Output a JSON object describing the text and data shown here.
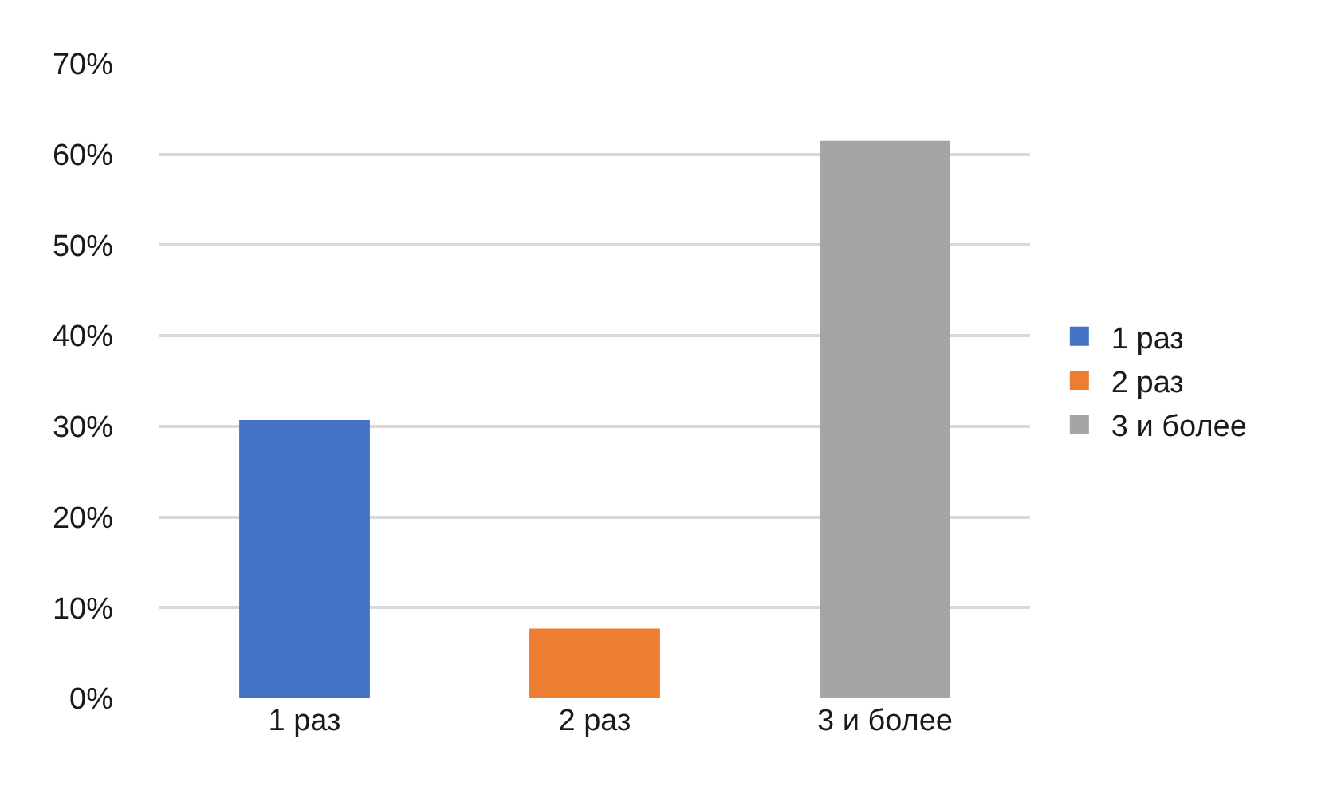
{
  "chart_data": {
    "type": "bar",
    "categories": [
      "1 раз",
      "2 раз",
      "3 и более"
    ],
    "series": [
      {
        "name": "1 раз",
        "color": "#4472c4",
        "values": [
          30.7,
          null,
          null
        ]
      },
      {
        "name": "2 раз",
        "color": "#ed7d31",
        "values": [
          null,
          7.7,
          null
        ]
      },
      {
        "name": "3 и более",
        "color": "#a5a5a5",
        "values": [
          null,
          null,
          61.5
        ]
      }
    ],
    "ylim": [
      0,
      70
    ],
    "yticks": [
      {
        "value": 0,
        "label": "0%"
      },
      {
        "value": 10,
        "label": "10%"
      },
      {
        "value": 20,
        "label": "20%"
      },
      {
        "value": 30,
        "label": "30%"
      },
      {
        "value": 40,
        "label": "40%"
      },
      {
        "value": 50,
        "label": "50%"
      },
      {
        "value": 60,
        "label": "60%"
      },
      {
        "value": 70,
        "label": "70%"
      }
    ],
    "grid": "y",
    "legend": "right"
  }
}
